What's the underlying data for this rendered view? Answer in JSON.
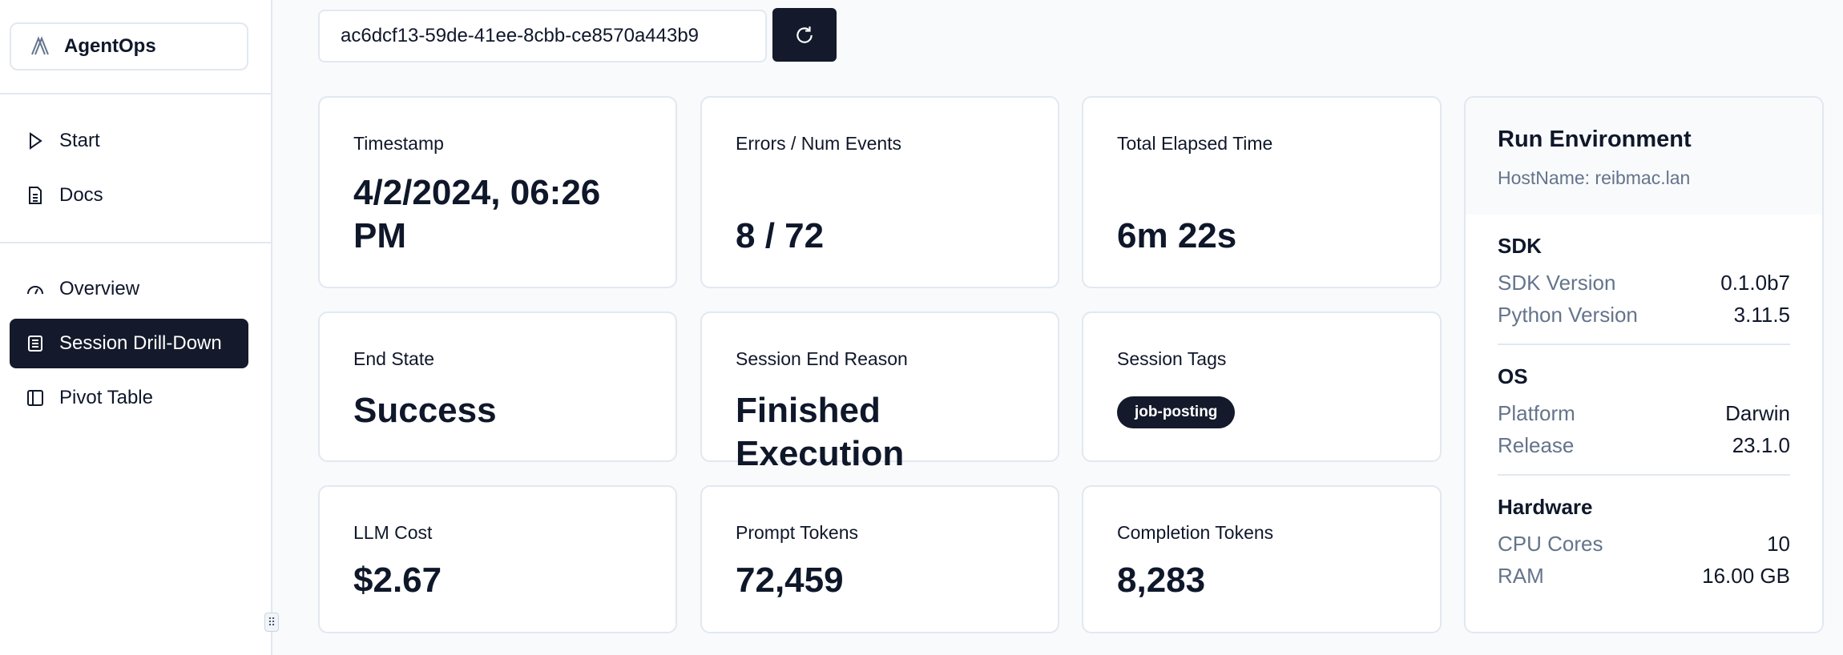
{
  "sidebar": {
    "brand": "AgentOps",
    "items": [
      {
        "label": "Start",
        "icon": "play-icon"
      },
      {
        "label": "Docs",
        "icon": "document-icon"
      },
      {
        "label": "Overview",
        "icon": "gauge-icon"
      },
      {
        "label": "Session Drill-Down",
        "icon": "list-icon",
        "active": true
      },
      {
        "label": "Pivot Table",
        "icon": "table-icon"
      }
    ]
  },
  "session": {
    "id": "ac6dcf13-59de-41ee-8cbb-ce8570a443b9",
    "refresh_icon": "refresh-icon"
  },
  "cards": {
    "timestamp": {
      "label": "Timestamp",
      "value_line1": "4/2/2024, 06:26",
      "value_line2": "PM"
    },
    "errors": {
      "label": "Errors / Num Events",
      "value": "8 / 72"
    },
    "elapsed": {
      "label": "Total Elapsed Time",
      "value": "6m 22s"
    },
    "end_state": {
      "label": "End State",
      "value": "Success"
    },
    "end_reason": {
      "label": "Session End Reason",
      "value": "Finished Execution"
    },
    "tags": {
      "label": "Session Tags",
      "tags": [
        "job-posting"
      ]
    },
    "cost": {
      "label": "LLM Cost",
      "value": "$2.67"
    },
    "prompt": {
      "label": "Prompt Tokens",
      "value": "72,459"
    },
    "completion": {
      "label": "Completion Tokens",
      "value": "8,283"
    }
  },
  "environment": {
    "title": "Run Environment",
    "hostname": "HostName: reibmac.lan",
    "sections": [
      {
        "title": "SDK",
        "rows": [
          {
            "k": "SDK Version",
            "v": "0.1.0b7"
          },
          {
            "k": "Python Version",
            "v": "3.11.5"
          }
        ]
      },
      {
        "title": "OS",
        "rows": [
          {
            "k": "Platform",
            "v": "Darwin"
          },
          {
            "k": "Release",
            "v": "23.1.0"
          }
        ]
      },
      {
        "title": "Hardware",
        "rows": [
          {
            "k": "CPU Cores",
            "v": "10"
          },
          {
            "k": "RAM",
            "v": "16.00 GB"
          }
        ]
      }
    ]
  },
  "colors": {
    "primary": "#141a2b",
    "muted": "#64748b",
    "border": "#e2e8f0"
  }
}
